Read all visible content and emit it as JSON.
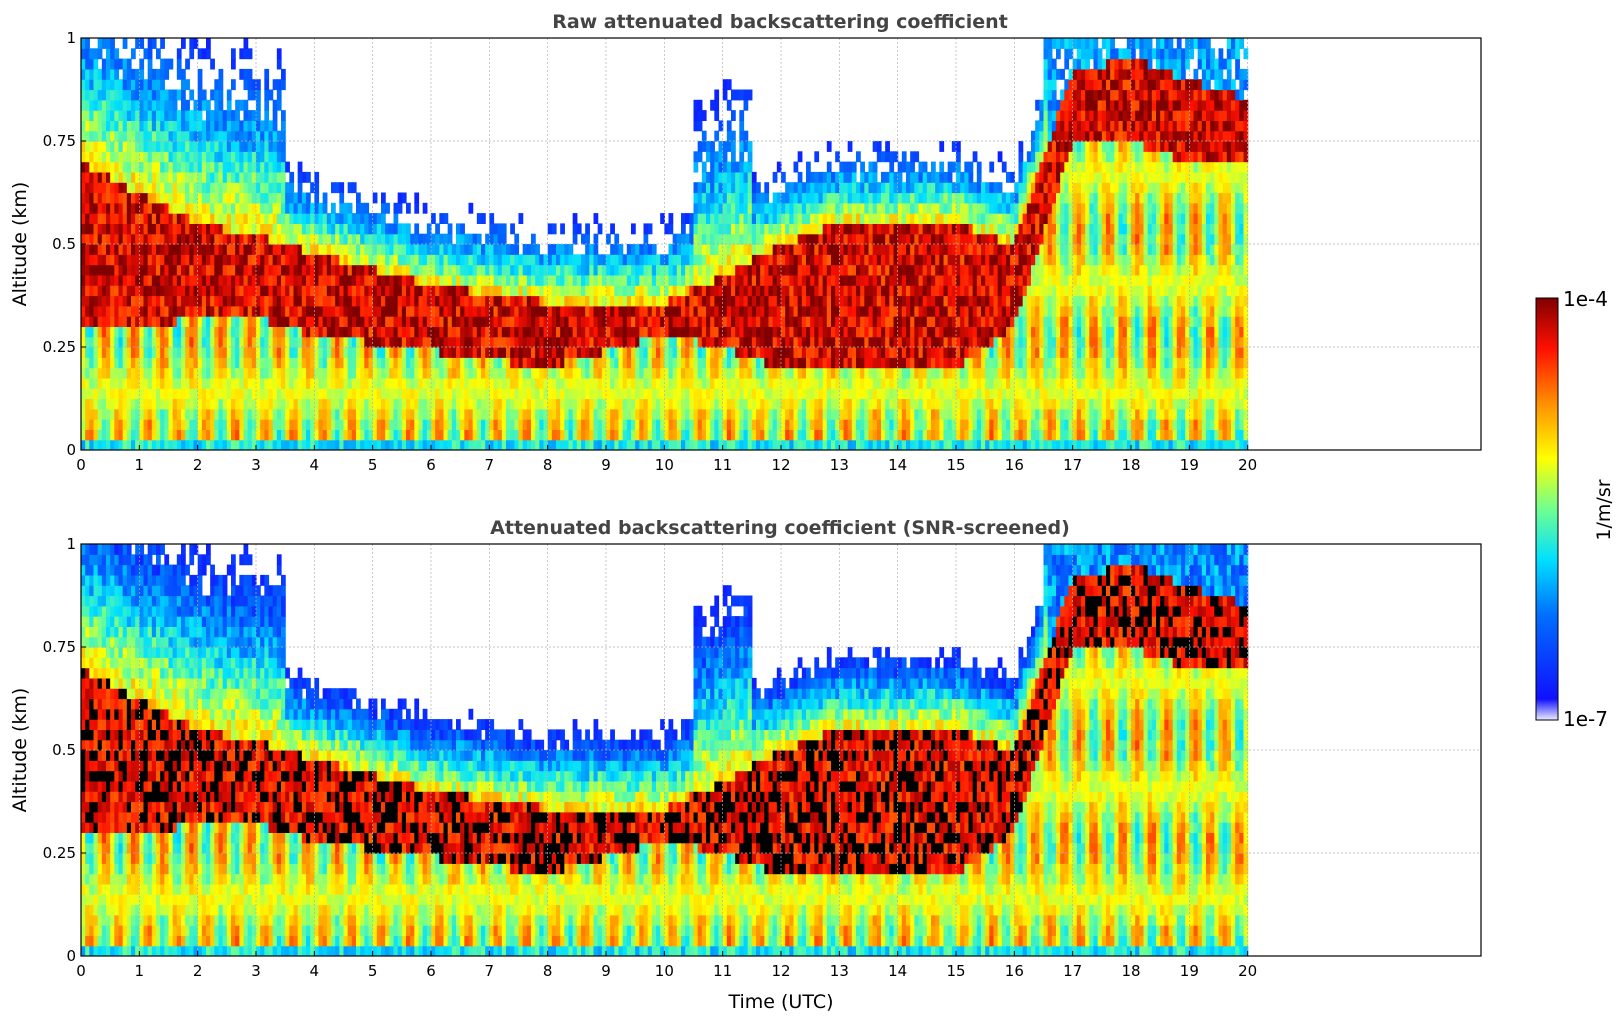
{
  "chart_data": [
    {
      "type": "heatmap",
      "title": "Raw attenuated backscattering coefficient",
      "xlabel": "",
      "ylabel": "Altitude (km)",
      "xlim": [
        0,
        24
      ],
      "ylim": [
        0,
        1
      ],
      "xticks": [
        "0",
        "1",
        "2",
        "3",
        "4",
        "5",
        "6",
        "7",
        "8",
        "9",
        "10",
        "11",
        "12",
        "13",
        "14",
        "15",
        "16",
        "17",
        "18",
        "19",
        "20"
      ],
      "yticks": [
        "0",
        "0.25",
        "0.5",
        "0.75",
        "1"
      ],
      "data_end_time": 20,
      "grid": true,
      "snr_screened": false,
      "layer_top_km": [
        0.7,
        0.62,
        0.55,
        0.52,
        0.48,
        0.44,
        0.4,
        0.38,
        0.36,
        0.36,
        0.36,
        0.42,
        0.5,
        0.55,
        0.55,
        0.55,
        0.5,
        0.92,
        0.95,
        0.9,
        0.85
      ],
      "layer_bottom_km": [
        0.3,
        0.3,
        0.32,
        0.32,
        0.28,
        0.26,
        0.24,
        0.22,
        0.2,
        0.24,
        0.28,
        0.25,
        0.2,
        0.2,
        0.2,
        0.2,
        0.3,
        0.75,
        0.75,
        0.7,
        0.7
      ]
    },
    {
      "type": "heatmap",
      "title": "Attenuated backscattering coefficient (SNR-screened)",
      "xlabel": "Time (UTC)",
      "ylabel": "Altitude (km)",
      "xlim": [
        0,
        24
      ],
      "ylim": [
        0,
        1
      ],
      "xticks": [
        "0",
        "1",
        "2",
        "3",
        "4",
        "5",
        "6",
        "7",
        "8",
        "9",
        "10",
        "11",
        "12",
        "13",
        "14",
        "15",
        "16",
        "17",
        "18",
        "19",
        "20"
      ],
      "yticks": [
        "0",
        "0.25",
        "0.5",
        "0.75",
        "1"
      ],
      "data_end_time": 20,
      "grid": true,
      "snr_screened": true,
      "layer_top_km": [
        0.7,
        0.62,
        0.55,
        0.52,
        0.48,
        0.44,
        0.4,
        0.38,
        0.36,
        0.36,
        0.36,
        0.42,
        0.5,
        0.55,
        0.55,
        0.55,
        0.5,
        0.92,
        0.95,
        0.9,
        0.85
      ],
      "layer_bottom_km": [
        0.3,
        0.3,
        0.32,
        0.32,
        0.28,
        0.26,
        0.24,
        0.22,
        0.2,
        0.24,
        0.28,
        0.25,
        0.2,
        0.2,
        0.2,
        0.2,
        0.3,
        0.75,
        0.75,
        0.7,
        0.7
      ]
    }
  ],
  "colorbar": {
    "max_label": "1e-4",
    "min_label": "1e-7",
    "unit_label": "1/m/sr",
    "colormap": "jet"
  }
}
